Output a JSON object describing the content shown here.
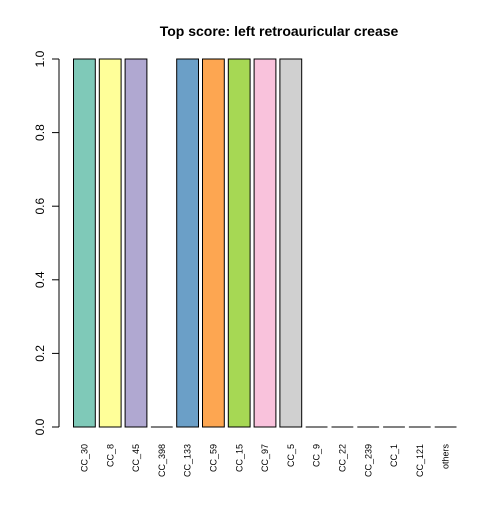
{
  "chart_data": {
    "type": "bar",
    "title": "Top score:  left retroauricular crease",
    "xlabel": "",
    "ylabel": "",
    "ylim": [
      0,
      1
    ],
    "yticks": [
      "0.0",
      "0.2",
      "0.4",
      "0.6",
      "0.8",
      "1.0"
    ],
    "categories": [
      "CC_30",
      "CC_8",
      "CC_45",
      "CC_398",
      "CC_133",
      "CC_59",
      "CC_15",
      "CC_97",
      "CC_5",
      "CC_9",
      "CC_22",
      "CC_239",
      "CC_1",
      "CC_121",
      "others"
    ],
    "values": [
      1,
      1,
      1,
      0,
      1,
      1,
      1,
      1,
      1,
      0,
      0,
      0,
      0,
      0,
      0
    ],
    "colors": [
      "#7fc9b8",
      "#ffff99",
      "#b0a8d1",
      "#ffffff",
      "#6b9fc7",
      "#fda651",
      "#a6d854",
      "#f9c2dc",
      "#d0d0d0",
      "#ffffff",
      "#ffffff",
      "#ffffff",
      "#ffffff",
      "#ffffff",
      "#ffffff"
    ],
    "grid": false,
    "legend": "none"
  }
}
